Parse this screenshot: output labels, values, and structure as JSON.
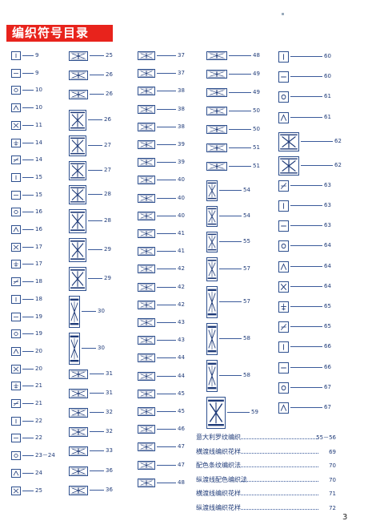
{
  "title": "编织符号目录",
  "page_number": "3",
  "columns": [
    [
      "9",
      "9",
      "10",
      "10",
      "11",
      "14",
      "14",
      "15",
      "15",
      "16",
      "16",
      "17",
      "17",
      "18",
      "18",
      "19",
      "19",
      "20",
      "20",
      "21",
      "21",
      "22",
      "22",
      "23－24",
      "24",
      "25"
    ],
    [
      "25",
      "26",
      "26",
      "26",
      "27",
      "27",
      "28",
      "28",
      "29",
      "29",
      "30",
      "30",
      "31",
      "31",
      "32",
      "32",
      "33",
      "36",
      "36"
    ],
    [
      "37",
      "37",
      "38",
      "38",
      "38",
      "39",
      "39",
      "40",
      "40",
      "40",
      "41",
      "41",
      "42",
      "42",
      "42",
      "43",
      "43",
      "44",
      "44",
      "45",
      "45",
      "46",
      "47",
      "47",
      "48"
    ],
    [
      "48",
      "49",
      "49",
      "50",
      "50",
      "51",
      "51",
      "54",
      "54",
      "55",
      "57",
      "57",
      "58",
      "58",
      "59"
    ],
    [
      "60",
      "60",
      "61",
      "61",
      "62",
      "62",
      "63",
      "63",
      "63",
      "64",
      "64",
      "64",
      "65",
      "65",
      "66",
      "66",
      "67",
      "67"
    ]
  ],
  "categories": [
    {
      "label": "意大利罗纹编织",
      "page": "55－56"
    },
    {
      "label": "横渡线编织花样",
      "page": "69"
    },
    {
      "label": "配色条纹编织法",
      "page": "70"
    },
    {
      "label": "纵渡线配色编织法",
      "page": "70"
    },
    {
      "label": "横渡线编织花样",
      "page": "71"
    },
    {
      "label": "纵渡线编织花样",
      "page": "72"
    }
  ]
}
